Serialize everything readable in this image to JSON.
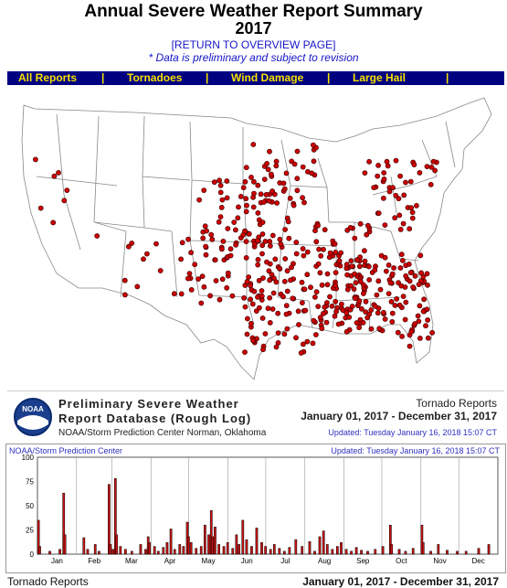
{
  "header": {
    "title": "Annual Severe Weather Report Summary",
    "year": "2017",
    "return_link": "[RETURN TO OVERVIEW PAGE]",
    "note": "* Data is preliminary and subject to revision"
  },
  "nav": {
    "items": [
      "All Reports",
      "Tornadoes",
      "Wind Damage",
      "Large Hail"
    ],
    "separator": "|"
  },
  "map": {
    "report_dot_color": "#cc0000",
    "state_line_color": "#888888"
  },
  "legend": {
    "logo_text": "NOAA",
    "title_line1": "Preliminary Severe Weather",
    "title_line2": "Report Database (Rough Log)",
    "org_line": "NOAA/Storm Prediction Center   Norman, Oklahoma",
    "report_type": "Tornado Reports",
    "date_range": "January 01, 2017 - December 31, 2017",
    "updated": "Updated:  Tuesday January 16, 2018 15:07 CT"
  },
  "chart_header": {
    "left": "NOAA/Storm Prediction Center",
    "right": "Updated:  Tuesday January 16, 2018 15:07 CT"
  },
  "chart_data": {
    "type": "bar",
    "title": "",
    "xlabel": "",
    "ylabel": "",
    "ylim": [
      0,
      100
    ],
    "yticks": [
      0,
      25,
      50,
      75,
      100
    ],
    "month_labels": [
      "Jan",
      "Feb",
      "Mar",
      "Apr",
      "May",
      "Jun",
      "Jul",
      "Aug",
      "Sep",
      "Oct",
      "Nov",
      "Dec"
    ],
    "bar_color": "#cc1111",
    "spikes": [
      {
        "day": 1,
        "value": 35
      },
      {
        "day": 2,
        "value": 8
      },
      {
        "day": 10,
        "value": 3
      },
      {
        "day": 18,
        "value": 5
      },
      {
        "day": 21,
        "value": 63
      },
      {
        "day": 22,
        "value": 20
      },
      {
        "day": 37,
        "value": 17
      },
      {
        "day": 40,
        "value": 5
      },
      {
        "day": 46,
        "value": 10
      },
      {
        "day": 49,
        "value": 3
      },
      {
        "day": 57,
        "value": 72
      },
      {
        "day": 58,
        "value": 10
      },
      {
        "day": 60,
        "value": 5
      },
      {
        "day": 62,
        "value": 78
      },
      {
        "day": 63,
        "value": 20
      },
      {
        "day": 66,
        "value": 8
      },
      {
        "day": 70,
        "value": 5
      },
      {
        "day": 75,
        "value": 3
      },
      {
        "day": 82,
        "value": 10
      },
      {
        "day": 86,
        "value": 5
      },
      {
        "day": 88,
        "value": 18
      },
      {
        "day": 89,
        "value": 12
      },
      {
        "day": 93,
        "value": 8
      },
      {
        "day": 96,
        "value": 3
      },
      {
        "day": 100,
        "value": 7
      },
      {
        "day": 103,
        "value": 12
      },
      {
        "day": 106,
        "value": 26
      },
      {
        "day": 109,
        "value": 5
      },
      {
        "day": 113,
        "value": 10
      },
      {
        "day": 116,
        "value": 8
      },
      {
        "day": 119,
        "value": 33
      },
      {
        "day": 120,
        "value": 18
      },
      {
        "day": 122,
        "value": 12
      },
      {
        "day": 126,
        "value": 6
      },
      {
        "day": 130,
        "value": 8
      },
      {
        "day": 133,
        "value": 30
      },
      {
        "day": 136,
        "value": 20
      },
      {
        "day": 138,
        "value": 45
      },
      {
        "day": 139,
        "value": 18
      },
      {
        "day": 141,
        "value": 28
      },
      {
        "day": 144,
        "value": 10
      },
      {
        "day": 148,
        "value": 8
      },
      {
        "day": 151,
        "value": 12
      },
      {
        "day": 155,
        "value": 6
      },
      {
        "day": 158,
        "value": 20
      },
      {
        "day": 160,
        "value": 10
      },
      {
        "day": 163,
        "value": 35
      },
      {
        "day": 166,
        "value": 15
      },
      {
        "day": 170,
        "value": 8
      },
      {
        "day": 174,
        "value": 27
      },
      {
        "day": 178,
        "value": 12
      },
      {
        "day": 181,
        "value": 8
      },
      {
        "day": 185,
        "value": 5
      },
      {
        "day": 188,
        "value": 10
      },
      {
        "day": 192,
        "value": 6
      },
      {
        "day": 196,
        "value": 3
      },
      {
        "day": 200,
        "value": 7
      },
      {
        "day": 205,
        "value": 15
      },
      {
        "day": 210,
        "value": 8
      },
      {
        "day": 216,
        "value": 13
      },
      {
        "day": 220,
        "value": 3
      },
      {
        "day": 224,
        "value": 18
      },
      {
        "day": 227,
        "value": 24
      },
      {
        "day": 230,
        "value": 10
      },
      {
        "day": 234,
        "value": 5
      },
      {
        "day": 238,
        "value": 8
      },
      {
        "day": 241,
        "value": 12
      },
      {
        "day": 245,
        "value": 5
      },
      {
        "day": 249,
        "value": 3
      },
      {
        "day": 253,
        "value": 7
      },
      {
        "day": 257,
        "value": 4
      },
      {
        "day": 262,
        "value": 3
      },
      {
        "day": 268,
        "value": 5
      },
      {
        "day": 274,
        "value": 8
      },
      {
        "day": 280,
        "value": 30
      },
      {
        "day": 281,
        "value": 10
      },
      {
        "day": 287,
        "value": 5
      },
      {
        "day": 292,
        "value": 3
      },
      {
        "day": 298,
        "value": 6
      },
      {
        "day": 305,
        "value": 30
      },
      {
        "day": 306,
        "value": 12
      },
      {
        "day": 312,
        "value": 3
      },
      {
        "day": 318,
        "value": 10
      },
      {
        "day": 325,
        "value": 4
      },
      {
        "day": 333,
        "value": 3
      },
      {
        "day": 340,
        "value": 3
      },
      {
        "day": 350,
        "value": 6
      },
      {
        "day": 358,
        "value": 10
      }
    ]
  },
  "footer": {
    "left": "Tornado Reports",
    "right": "January 01, 2017 - December 31, 2017"
  }
}
